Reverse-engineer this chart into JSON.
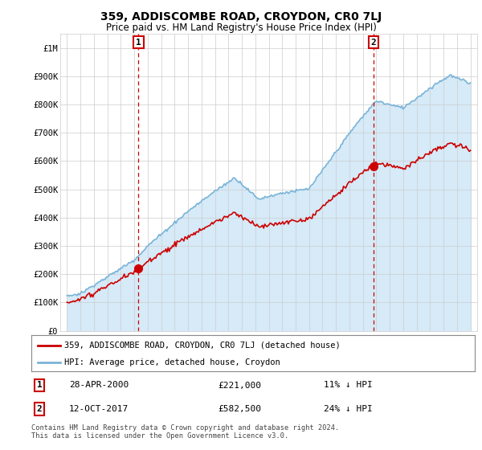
{
  "title": "359, ADDISCOMBE ROAD, CROYDON, CR0 7LJ",
  "subtitle": "Price paid vs. HM Land Registry's House Price Index (HPI)",
  "legend_line1": "359, ADDISCOMBE ROAD, CROYDON, CR0 7LJ (detached house)",
  "legend_line2": "HPI: Average price, detached house, Croydon",
  "annotation1_date": "28-APR-2000",
  "annotation1_price": "£221,000",
  "annotation1_hpi": "11% ↓ HPI",
  "annotation2_date": "12-OCT-2017",
  "annotation2_price": "£582,500",
  "annotation2_hpi": "24% ↓ HPI",
  "footer": "Contains HM Land Registry data © Crown copyright and database right 2024.\nThis data is licensed under the Open Government Licence v3.0.",
  "ylim": [
    0,
    1050000
  ],
  "yticks": [
    0,
    100000,
    200000,
    300000,
    400000,
    500000,
    600000,
    700000,
    800000,
    900000,
    1000000
  ],
  "ytick_labels": [
    "£0",
    "£100K",
    "£200K",
    "£300K",
    "£400K",
    "£500K",
    "£600K",
    "£700K",
    "£800K",
    "£900K",
    "£1M"
  ],
  "hpi_color": "#7ab4d8",
  "hpi_fill_color": "#d6eaf8",
  "price_color": "#cc0000",
  "bg_color": "#ffffff",
  "grid_color": "#cccccc",
  "ann_color": "#cc0000",
  "sale1_x": 2000.32,
  "sale1_y": 221000,
  "sale2_x": 2017.78,
  "sale2_y": 582500,
  "xlim_left": 1994.5,
  "xlim_right": 2025.5
}
